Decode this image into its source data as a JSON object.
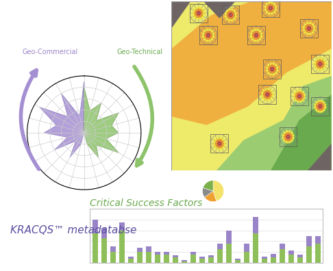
{
  "texts": {
    "brand": "KRACQS™ metadatabse"
  },
  "chart_data": [
    {
      "type": "radar",
      "ylim": [
        0,
        10
      ],
      "yticks": [
        2,
        4,
        6,
        8,
        10
      ],
      "grid": true,
      "tick_labels": false,
      "series": [
        {
          "name": "Geo-Commercial",
          "color": "#a58fd3",
          "values": [
            9,
            3,
            8,
            4,
            9,
            5,
            7,
            3,
            6,
            2,
            5,
            2
          ]
        },
        {
          "name": "Geo-Technical",
          "color": "#8dc46b",
          "values": [
            8,
            4,
            6,
            3,
            7,
            5,
            6,
            4,
            7,
            3,
            5,
            2
          ]
        }
      ]
    },
    {
      "type": "bar",
      "title": "Critical Success Factors",
      "stacked": true,
      "grid": true,
      "tick_labels": false,
      "categories": [
        null,
        null,
        null,
        null,
        null,
        null,
        null,
        null,
        null,
        null,
        null,
        null,
        null,
        null,
        null,
        null,
        null,
        null,
        null,
        null,
        null,
        null,
        null,
        null,
        null,
        null
      ],
      "ylim": [
        0,
        100
      ],
      "yticks": [
        0,
        20,
        40,
        60,
        80,
        100
      ],
      "series": [
        {
          "color": "#8fbf5a",
          "values": [
            55,
            45,
            20,
            60,
            8,
            20,
            20,
            15,
            15,
            10,
            3,
            15,
            8,
            10,
            25,
            35,
            5,
            20,
            55,
            8,
            10,
            25,
            15,
            10,
            30,
            35
          ]
        },
        {
          "color": "#9a84c8",
          "values": [
            25,
            20,
            10,
            15,
            4,
            8,
            10,
            5,
            5,
            4,
            2,
            5,
            3,
            4,
            10,
            25,
            3,
            15,
            30,
            4,
            6,
            10,
            8,
            5,
            20,
            15
          ]
        }
      ]
    },
    {
      "type": "pie",
      "values": [
        45,
        20,
        15,
        20
      ],
      "colors": [
        "#f4e36a",
        "#f0a030",
        "#8a8a8a",
        "#7bb04a"
      ]
    }
  ]
}
